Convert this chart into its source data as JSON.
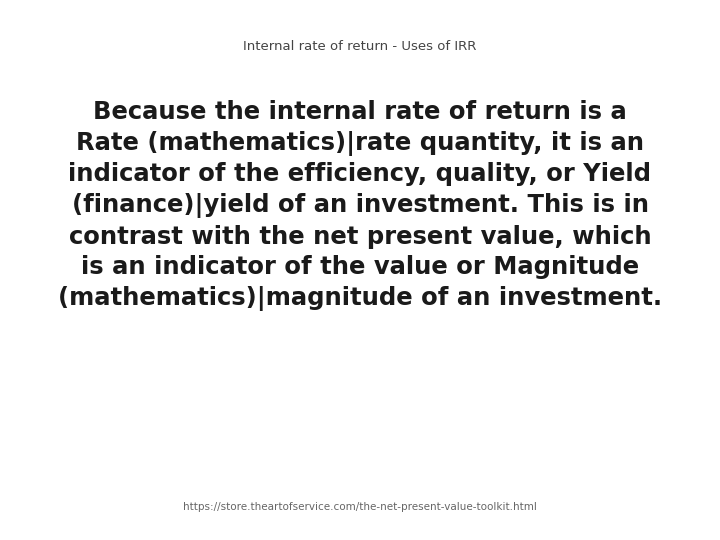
{
  "title": "Internal rate of return - Uses of IRR",
  "title_fontsize": 9.5,
  "title_color": "#444444",
  "body_text": "Because the internal rate of return is a\nRate (mathematics)|rate quantity, it is an\nindicator of the efficiency, quality, or Yield\n(finance)|yield of an investment. This is in\ncontrast with the net present value, which\nis an indicator of the value or Magnitude\n(mathematics)|magnitude of an investment.",
  "body_fontsize": 17.5,
  "body_color": "#1a1a1a",
  "footer_text": "https://store.theartofservice.com/the-net-present-value-toolkit.html",
  "footer_fontsize": 7.5,
  "footer_color": "#666666",
  "background_color": "#ffffff"
}
